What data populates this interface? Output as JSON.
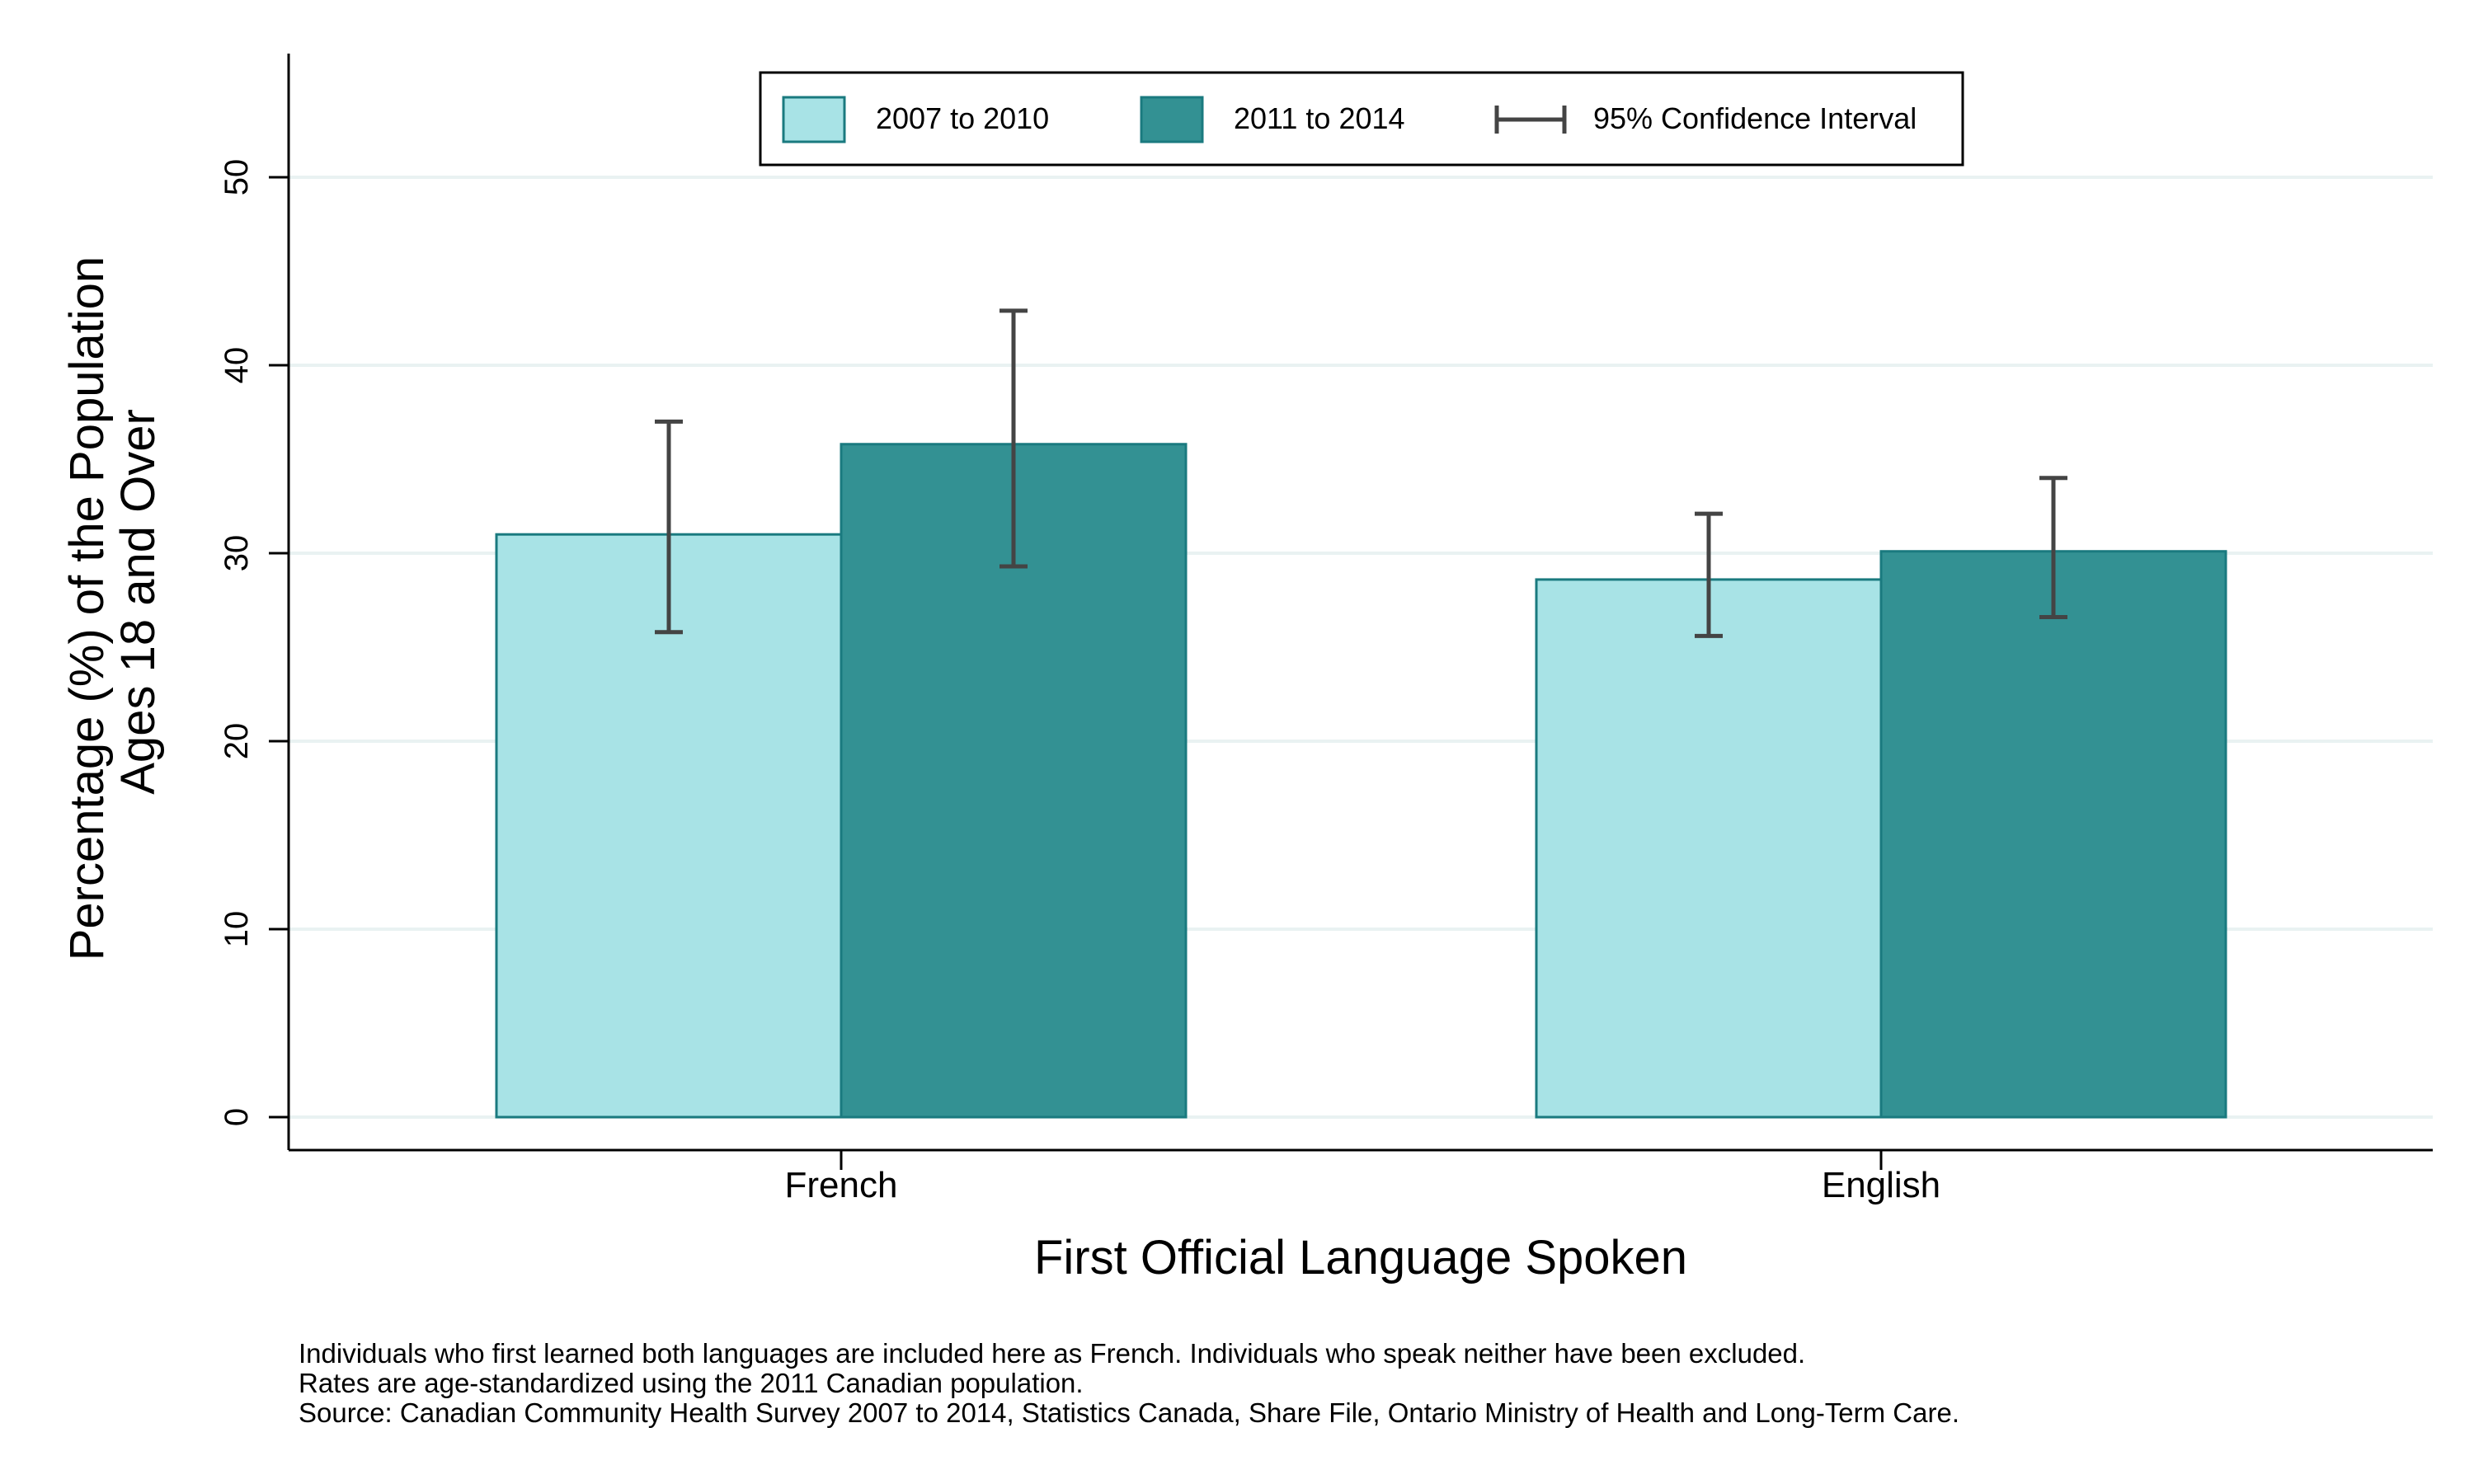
{
  "chart_data": {
    "type": "bar",
    "title": "",
    "xlabel": "First Official Language Spoken",
    "ylabel": "Percentage (%) of the Population",
    "ylabel_line2": "Ages 18 and Over",
    "ylim": [
      0,
      55
    ],
    "yticks": [
      0,
      10,
      20,
      30,
      40,
      50
    ],
    "grid": true,
    "categories": [
      "French",
      "English"
    ],
    "series": [
      {
        "name": "2007 to 2010",
        "color": "#a8e3e6",
        "values": [
          31.0,
          28.6
        ],
        "ci_low": [
          25.8,
          25.6
        ],
        "ci_high": [
          37.0,
          32.1
        ]
      },
      {
        "name": "2011 to 2014",
        "color": "#339193",
        "values": [
          35.8,
          30.1
        ],
        "ci_low": [
          29.3,
          26.6
        ],
        "ci_high": [
          42.9,
          34.0
        ]
      }
    ],
    "ci_legend_label": "95% Confidence Interval",
    "legend_position": "top-center"
  },
  "footnotes": [
    "Individuals who first learned both languages are included here as French.  Individuals who speak neither have been excluded.",
    "Rates are age-standardized using the 2011 Canadian population.",
    "Source: Canadian Community Health Survey 2007 to 2014, Statistics Canada, Share File, Ontario Ministry of Health and Long-Term Care."
  ],
  "colors": {
    "grid": "#e9f2f2",
    "bar_edge": "#1a7a7f",
    "ci": "#444444",
    "axis": "#000000"
  }
}
